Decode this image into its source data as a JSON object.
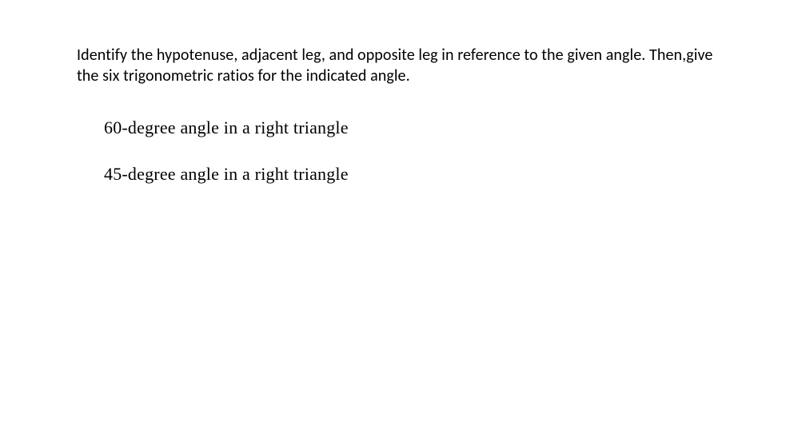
{
  "instruction": "Identify the hypotenuse, adjacent leg, and opposite leg in reference to the given angle. Then,give the six trigonometric ratios for the indicated angle.",
  "problems": {
    "p1": "60-degree angle in a right triangle",
    "p2": "45-degree angle in a right triangle"
  },
  "style": {
    "background_color": "#ffffff",
    "text_color": "#000000",
    "instruction_font": "Calibri",
    "instruction_fontsize": 20,
    "problem_font": "Georgia",
    "problem_fontsize": 22
  }
}
